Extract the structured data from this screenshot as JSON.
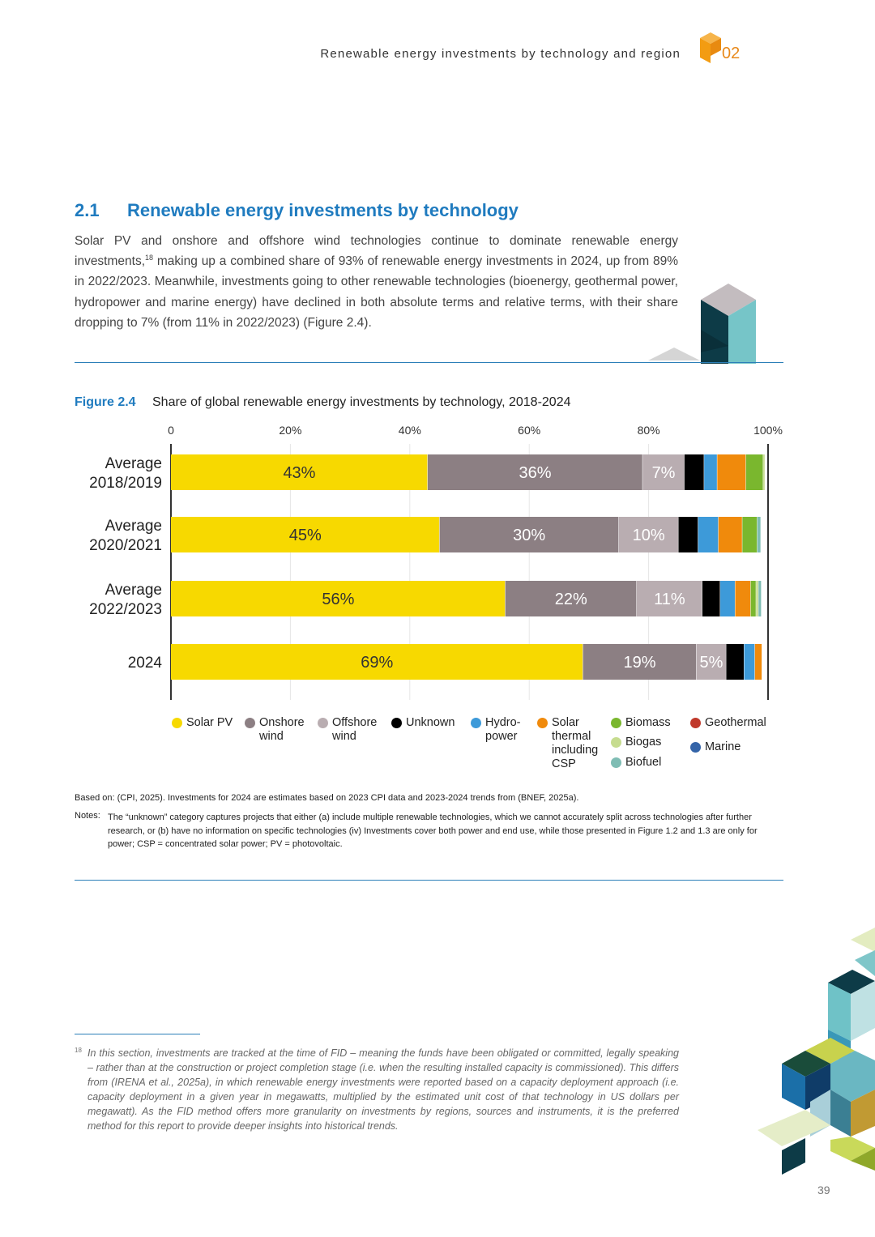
{
  "header": {
    "running_title": "Renewable energy investments by technology and region",
    "chapter": "02"
  },
  "section": {
    "number": "2.1",
    "title": "Renewable energy investments by technology",
    "para_part1": "Solar PV and onshore and offshore wind technologies continue to dominate renewable energy investments,",
    "footnote_ref": "18",
    "para_part2": " making up a combined share of 93% of renewable energy investments in 2024, up from 89% in 2022/2023. Meanwhile, investments going to other renewable technologies (bioenergy, geothermal power, hydropower and marine energy) have declined in both absolute terms and relative terms, with their share dropping to 7% (from 11% in 2022/2023) (Figure 2.4)."
  },
  "figure": {
    "label": "Figure 2.4",
    "title": "Share of global renewable energy investments by technology, 2018-2024"
  },
  "chart_data": {
    "type": "bar",
    "orientation": "horizontal",
    "stacked": true,
    "xlim": [
      0,
      100
    ],
    "x_ticks": [
      "0",
      "20%",
      "40%",
      "60%",
      "80%",
      "100%"
    ],
    "x_tick_values": [
      0,
      20,
      40,
      60,
      80,
      100
    ],
    "categories": [
      [
        "Average",
        "2018/2019"
      ],
      [
        "Average",
        "2020/2021"
      ],
      [
        "Average",
        "2022/2023"
      ],
      [
        "2024"
      ]
    ],
    "series": [
      {
        "name": "Solar PV",
        "color": "#f7d900",
        "label_color": "#333333",
        "values": [
          43,
          45,
          56,
          69
        ],
        "labels": [
          "43%",
          "45%",
          "56%",
          "69%"
        ]
      },
      {
        "name": "Onshore wind",
        "color": "#8c7f83",
        "label_color": "#ffffff",
        "values": [
          36,
          30,
          22,
          19
        ],
        "labels": [
          "36%",
          "30%",
          "22%",
          "19%"
        ]
      },
      {
        "name": "Offshore wind",
        "color": "#b9adb1",
        "label_color": "#ffffff",
        "values": [
          7,
          10,
          11,
          5
        ],
        "labels": [
          "7%",
          "10%",
          "11%",
          "5%"
        ]
      },
      {
        "name": "Unknown",
        "color": "#000000",
        "values": [
          3.3,
          3.3,
          3.0,
          3.0
        ]
      },
      {
        "name": "Hydropower",
        "color": "#3d9ad9",
        "values": [
          2.2,
          3.4,
          2.5,
          1.8
        ]
      },
      {
        "name": "Solar thermal including CSP",
        "color": "#f08a0c",
        "values": [
          4.8,
          4.0,
          2.6,
          1.2
        ]
      },
      {
        "name": "Biomass",
        "color": "#7ab72e",
        "values": [
          2.9,
          2.5,
          0.9,
          0
        ]
      },
      {
        "name": "Biogas",
        "color": "#c6dc8f",
        "values": [
          0.3,
          0,
          0.4,
          0
        ]
      },
      {
        "name": "Biofuel",
        "color": "#7fbdb4",
        "values": [
          0,
          0.6,
          0.5,
          0
        ]
      },
      {
        "name": "Geothermal",
        "color": "#c0392b",
        "values": [
          0,
          0,
          0,
          0
        ]
      },
      {
        "name": "Marine",
        "color": "#3464a8",
        "values": [
          0,
          0,
          0,
          0
        ]
      }
    ],
    "legend": {
      "placement": "bottom",
      "items": [
        {
          "lines": [
            "Solar PV"
          ],
          "color": "#f7d900"
        },
        {
          "lines": [
            "Onshore",
            "wind"
          ],
          "color": "#8c7f83"
        },
        {
          "lines": [
            "Offshore",
            "wind"
          ],
          "color": "#b9adb1"
        },
        {
          "lines": [
            "Unknown"
          ],
          "color": "#000000"
        },
        {
          "lines": [
            "Hydro-",
            "power"
          ],
          "color": "#3d9ad9"
        },
        {
          "lines": [
            "Solar",
            "thermal",
            "including",
            "CSP"
          ],
          "color": "#f08a0c"
        },
        {
          "lines": [
            "Biomass"
          ],
          "color": "#7ab72e"
        },
        {
          "lines": [
            "Biogas"
          ],
          "color": "#c6dc8f"
        },
        {
          "lines": [
            "Biofuel"
          ],
          "color": "#7fbdb4"
        },
        {
          "lines": [
            "Geothermal"
          ],
          "color": "#c0392b"
        },
        {
          "lines": [
            "Marine"
          ],
          "color": "#3464a8"
        }
      ]
    }
  },
  "notes": {
    "source": "Based on: (CPI, 2025). Investments for 2024 are estimates based on 2023 CPI data and 2023-2024 trends from (BNEF, 2025a).",
    "label": "Notes:",
    "text": "The “unknown” category captures projects that either (a) include multiple renewable technologies, which we cannot accurately split across technologies after further research, or (b) have no information on specific technologies (iv) Investments cover both power and end use, while those presented in Figure 1.2 and 1.3 are only for power; CSP = concentrated solar power; PV = photovoltaic."
  },
  "footnote": {
    "number": "18",
    "text": "In this section, investments are tracked at the time of FID – meaning the funds have been obligated or committed, legally speaking – rather than at the construction or project completion stage (i.e. when the resulting installed capacity is commissioned). This differs from (IRENA et al., 2025a), in which renewable energy investments were reported based on a capacity deployment approach (i.e. capacity deployment in a given year in megawatts, multiplied by the estimated unit cost of that technology in US dollars per megawatt). As the FID method offers more granularity on investments by regions, sources and instruments, it is the preferred method for this report to provide deeper insights into historical trends."
  },
  "page_number": "39"
}
